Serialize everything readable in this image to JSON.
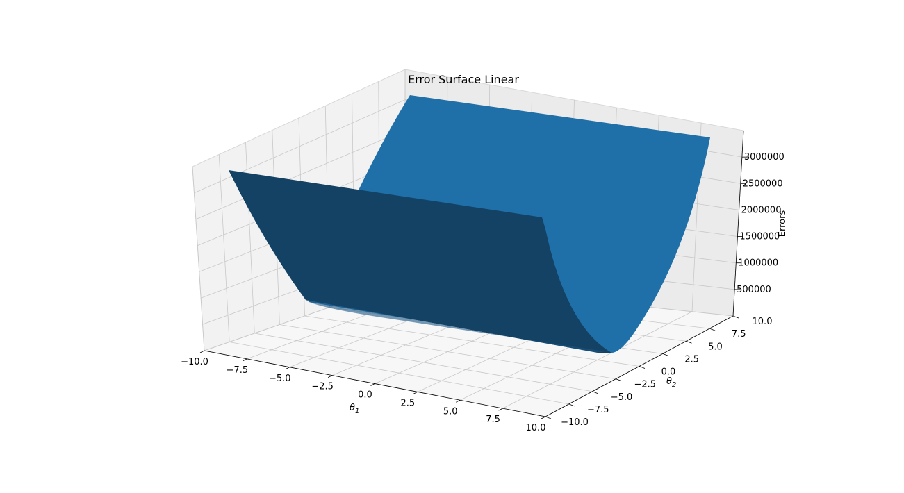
{
  "chart_data": {
    "type": "surface3d",
    "title": "Error Surface Linear",
    "xlabel": "θ",
    "xlabel_sub": "1",
    "ylabel": "θ",
    "ylabel_sub": "2",
    "zlabel": "Errors",
    "x_ticks": [
      "−10.0",
      "−7.5",
      "−5.0",
      "−2.5",
      "0.0",
      "2.5",
      "5.0",
      "7.5",
      "10.0"
    ],
    "y_ticks": [
      "−10.0",
      "−7.5",
      "−5.0",
      "−2.5",
      "0.0",
      "2.5",
      "5.0",
      "7.5",
      "10.0"
    ],
    "z_ticks": [
      "500000",
      "1000000",
      "1500000",
      "2000000",
      "2500000",
      "3000000"
    ],
    "xlim": [
      -10,
      10
    ],
    "ylim": [
      -10,
      10
    ],
    "zlim": [
      0,
      3500000
    ],
    "grid": true,
    "surface_color": "#1f6fa8",
    "surface_shadow_color": "#134265",
    "pane_color": "#f2f2f2",
    "grid_color": "#c8c8c8"
  }
}
